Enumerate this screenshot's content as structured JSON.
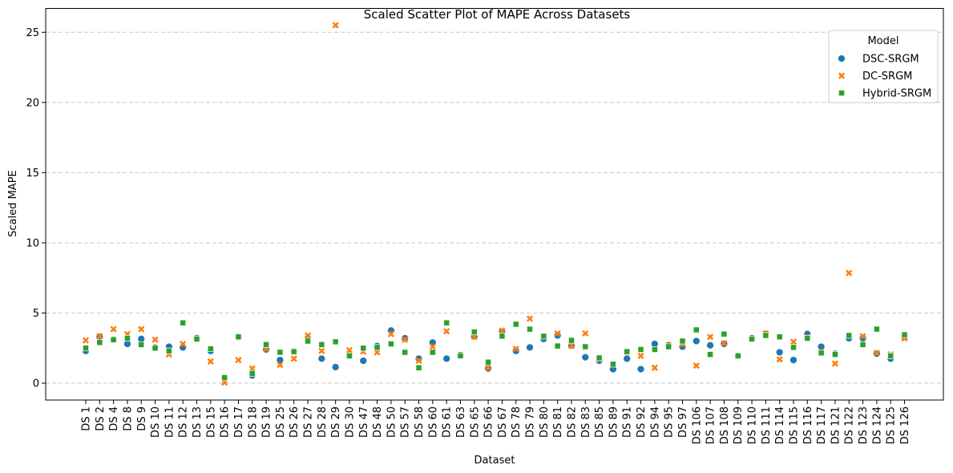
{
  "chart_data": {
    "type": "scatter",
    "title": "Scaled Scatter Plot of MAPE Across Datasets",
    "xlabel": "Dataset",
    "ylabel": "Scaled MAPE",
    "ylim": [
      -1.2,
      26.7
    ],
    "yticks": [
      0,
      5,
      10,
      15,
      20,
      25
    ],
    "grid": "y-dashed",
    "legend_position": "top-right",
    "legend_title": "Model",
    "categories": [
      "DS 1",
      "DS 2",
      "DS 4",
      "DS 8",
      "DS 9",
      "DS 10",
      "DS 11",
      "DS 12",
      "DS 13",
      "DS 15",
      "DS 16",
      "DS 17",
      "DS 18",
      "DS 19",
      "DS 25",
      "DS 26",
      "DS 27",
      "DS 28",
      "DS 29",
      "DS 30",
      "DS 47",
      "DS 48",
      "DS 50",
      "DS 57",
      "DS 58",
      "DS 60",
      "DS 61",
      "DS 63",
      "DS 65",
      "DS 66",
      "DS 67",
      "DS 78",
      "DS 79",
      "DS 80",
      "DS 81",
      "DS 82",
      "DS 83",
      "DS 85",
      "DS 89",
      "DS 91",
      "DS 92",
      "DS 94",
      "DS 95",
      "DS 97",
      "DS 106",
      "DS 107",
      "DS 108",
      "DS 109",
      "DS 110",
      "DS 111",
      "DS 114",
      "DS 115",
      "DS 116",
      "DS 117",
      "DS 121",
      "DS 122",
      "DS 123",
      "DS 124",
      "DS 125",
      "DS 126"
    ],
    "series": [
      {
        "name": "DSC-SRGM",
        "marker": "circle",
        "color": "#1f77b4",
        "values": [
          2.3,
          3.3,
          3.1,
          2.8,
          3.15,
          2.55,
          2.6,
          2.55,
          3.2,
          2.3,
          0.3,
          3.3,
          0.55,
          2.4,
          1.65,
          2.25,
          3.2,
          1.75,
          1.15,
          1.95,
          1.6,
          2.65,
          3.75,
          3.2,
          1.75,
          2.9,
          1.75,
          2.0,
          3.35,
          1.05,
          3.65,
          2.3,
          2.55,
          3.15,
          3.4,
          2.7,
          1.85,
          1.6,
          1.0,
          1.75,
          1.0,
          2.8,
          2.7,
          2.6,
          3.0,
          2.7,
          2.8,
          1.95,
          3.2,
          3.5,
          2.2,
          1.65,
          3.5,
          2.6,
          2.1,
          3.2,
          3.2,
          2.1,
          1.75,
          3.3
        ]
      },
      {
        "name": "DC-SRGM",
        "marker": "x",
        "color": "#ff7f0e",
        "values": [
          3.05,
          3.35,
          3.85,
          3.5,
          3.85,
          3.1,
          2.05,
          2.8,
          3.2,
          1.55,
          0.05,
          1.65,
          1.05,
          2.45,
          1.3,
          1.75,
          3.4,
          2.3,
          25.5,
          2.35,
          2.25,
          2.2,
          3.5,
          3.1,
          1.6,
          2.6,
          3.7,
          2.0,
          3.3,
          1.1,
          3.75,
          2.45,
          4.6,
          3.35,
          3.55,
          2.65,
          3.55,
          1.7,
          1.35,
          2.2,
          1.95,
          1.1,
          2.7,
          2.8,
          1.25,
          3.3,
          2.85,
          1.95,
          3.15,
          3.55,
          1.7,
          2.95,
          3.3,
          2.25,
          1.4,
          7.85,
          3.35,
          2.15,
          2.05,
          3.2
        ]
      },
      {
        "name": "Hybrid-SRGM",
        "marker": "square",
        "color": "#2ca02c",
        "values": [
          2.5,
          2.9,
          3.1,
          3.2,
          2.75,
          2.5,
          2.3,
          4.3,
          3.15,
          2.45,
          0.4,
          3.3,
          0.7,
          2.75,
          2.2,
          2.25,
          3.0,
          2.75,
          2.95,
          1.95,
          2.5,
          2.55,
          2.8,
          2.2,
          1.1,
          2.2,
          4.3,
          1.95,
          3.65,
          1.5,
          3.35,
          4.2,
          3.85,
          3.35,
          2.65,
          3.05,
          2.6,
          1.8,
          1.35,
          2.25,
          2.4,
          2.4,
          2.6,
          3.0,
          3.8,
          2.05,
          3.5,
          1.95,
          3.15,
          3.4,
          3.3,
          2.55,
          3.2,
          2.15,
          2.05,
          3.4,
          2.75,
          3.85,
          1.95,
          3.45
        ]
      }
    ]
  }
}
